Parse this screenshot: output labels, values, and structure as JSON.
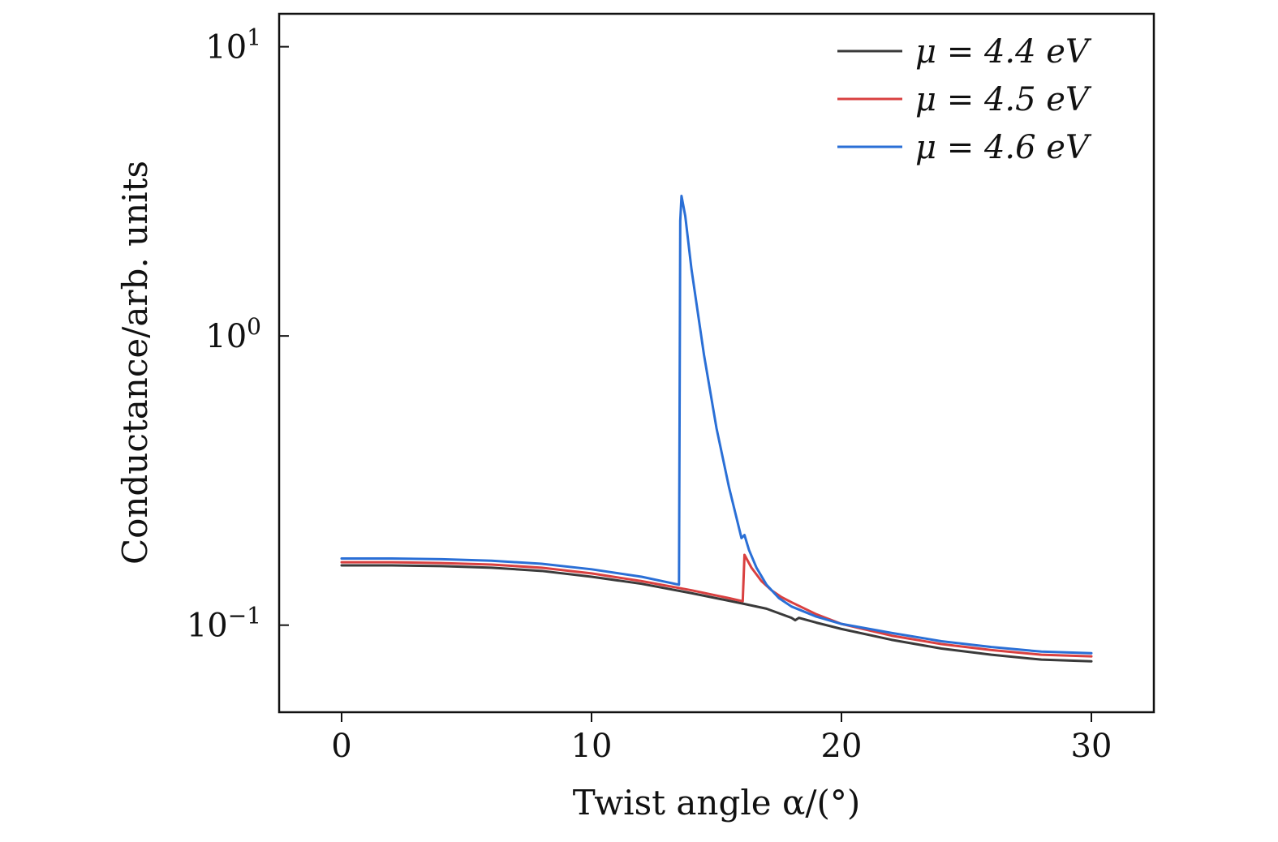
{
  "chart_data": {
    "type": "line",
    "xlabel": "Twist angle α/(°)",
    "ylabel": "Conductance/arb. units",
    "xlim": [
      -2.5,
      32.5
    ],
    "ylim": [
      0.05,
      13.0
    ],
    "yscale": "log",
    "grid": false,
    "legend_position": "top-right",
    "x_ticks": [
      {
        "value": 0,
        "label": "0"
      },
      {
        "value": 10,
        "label": "10"
      },
      {
        "value": 20,
        "label": "20"
      },
      {
        "value": 30,
        "label": "30"
      }
    ],
    "y_ticks": [
      {
        "value": 0.1,
        "base": "10",
        "exp": "−1"
      },
      {
        "value": 1,
        "base": "10",
        "exp": "0"
      },
      {
        "value": 10,
        "base": "10",
        "exp": "1"
      }
    ],
    "series": [
      {
        "name": "μ = 4.4 eV",
        "color": "#3a3a3a",
        "x": [
          0,
          2,
          4,
          6,
          8,
          10,
          12,
          14,
          16,
          17,
          18,
          18.15,
          18.3,
          19,
          20,
          22,
          24,
          26,
          28,
          30
        ],
        "y": [
          0.161,
          0.161,
          0.16,
          0.158,
          0.154,
          0.147,
          0.139,
          0.129,
          0.119,
          0.114,
          0.106,
          0.104,
          0.106,
          0.102,
          0.097,
          0.089,
          0.083,
          0.079,
          0.076,
          0.075
        ]
      },
      {
        "name": "μ = 4.5 eV",
        "color": "#d94040",
        "x": [
          0,
          2,
          4,
          6,
          8,
          10,
          12,
          14,
          15.5,
          16.05,
          16.12,
          16.4,
          16.8,
          17.2,
          17.6,
          18,
          19,
          20,
          22,
          24,
          26,
          28,
          30
        ],
        "y": [
          0.165,
          0.165,
          0.164,
          0.162,
          0.158,
          0.151,
          0.142,
          0.132,
          0.124,
          0.121,
          0.175,
          0.158,
          0.142,
          0.132,
          0.125,
          0.12,
          0.109,
          0.101,
          0.092,
          0.086,
          0.082,
          0.079,
          0.078
        ]
      },
      {
        "name": "μ = 4.6 eV",
        "color": "#2a6fd6",
        "x": [
          0,
          2,
          4,
          6,
          8,
          10,
          12,
          13.5,
          13.55,
          13.6,
          13.75,
          14,
          14.5,
          15,
          15.5,
          16,
          16.12,
          16.3,
          16.6,
          17,
          17.5,
          18,
          19,
          20,
          22,
          24,
          26,
          28,
          30
        ],
        "y": [
          0.17,
          0.17,
          0.169,
          0.167,
          0.163,
          0.156,
          0.147,
          0.138,
          2.5,
          3.05,
          2.6,
          1.7,
          0.86,
          0.48,
          0.3,
          0.2,
          0.205,
          0.182,
          0.158,
          0.138,
          0.124,
          0.116,
          0.107,
          0.101,
          0.094,
          0.088,
          0.084,
          0.081,
          0.08
        ]
      }
    ]
  }
}
